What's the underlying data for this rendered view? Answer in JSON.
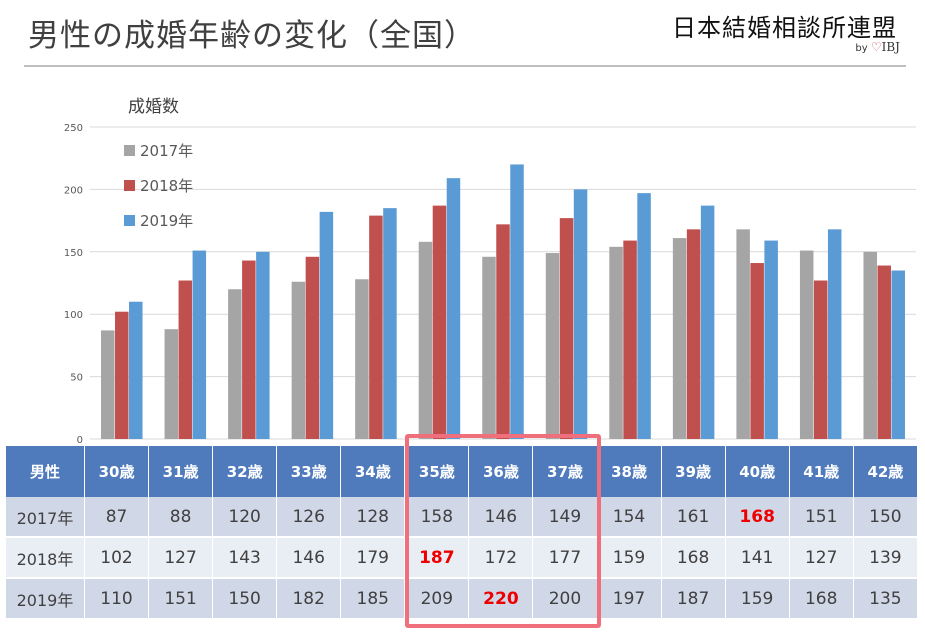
{
  "title": "男性の成婚年齢の変化（全国）",
  "logo": {
    "name": "日本結婚相談所連盟",
    "by": "by",
    "heart": "♡",
    "brand": "IBJ"
  },
  "chart_data": {
    "type": "bar",
    "ylabel": "成婚数",
    "ylim": [
      0,
      250
    ],
    "yticks": [
      0,
      50,
      100,
      150,
      200,
      250
    ],
    "grid": true,
    "legend_position": "top-left",
    "categories": [
      "30歳",
      "31歳",
      "32歳",
      "33歳",
      "34歳",
      "35歳",
      "36歳",
      "37歳",
      "38歳",
      "39歳",
      "40歳",
      "41歳",
      "42歳"
    ],
    "series": [
      {
        "name": "2017年",
        "color": "#a5a5a5",
        "values": [
          87,
          88,
          120,
          126,
          128,
          158,
          146,
          149,
          154,
          161,
          168,
          151,
          150
        ]
      },
      {
        "name": "2018年",
        "color": "#c0504d",
        "values": [
          102,
          127,
          143,
          146,
          179,
          187,
          172,
          177,
          159,
          168,
          141,
          127,
          139
        ]
      },
      {
        "name": "2019年",
        "color": "#5b9bd5",
        "values": [
          110,
          151,
          150,
          182,
          185,
          209,
          220,
          200,
          197,
          187,
          159,
          168,
          135
        ]
      }
    ]
  },
  "table": {
    "corner_label": "男性",
    "highlights": [
      {
        "row": 0,
        "col": 10
      },
      {
        "row": 1,
        "col": 5
      },
      {
        "row": 2,
        "col": 6
      }
    ]
  },
  "colors": {
    "header_bg": "#4f7bbd",
    "highlight_text": "#ee0000",
    "highlight_box": "#f06f7c"
  }
}
